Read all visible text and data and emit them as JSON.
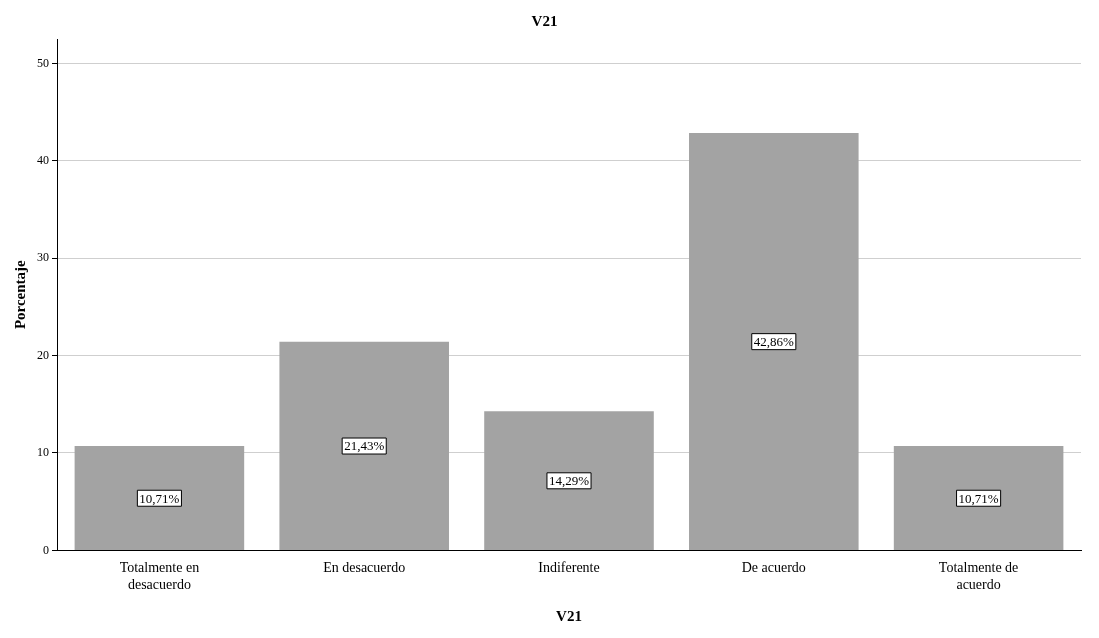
{
  "chart_data": {
    "type": "bar",
    "title": "V21",
    "xlabel": "V21",
    "ylabel": "Porcentaje",
    "categories": [
      "Totalmente en desacuerdo",
      "En desacuerdo",
      "Indiferente",
      "De acuerdo",
      "Totalmente de acuerdo"
    ],
    "values": [
      10.71,
      21.43,
      14.29,
      42.86,
      10.71
    ],
    "value_labels": [
      "10,71%",
      "21,43%",
      "14,29%",
      "42,86%",
      "10,71%"
    ],
    "color": "#a3a3a3",
    "ylim": [
      0,
      52.5
    ],
    "yticks": [
      0,
      10,
      20,
      30,
      40,
      50
    ],
    "grid": "y",
    "legend": false
  }
}
